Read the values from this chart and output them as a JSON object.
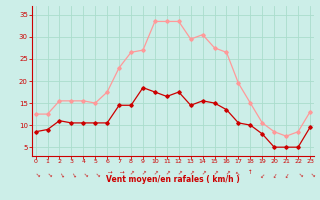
{
  "hours": [
    0,
    1,
    2,
    3,
    4,
    5,
    6,
    7,
    8,
    9,
    10,
    11,
    12,
    13,
    14,
    15,
    16,
    17,
    18,
    19,
    20,
    21,
    22,
    23
  ],
  "wind_avg": [
    8.5,
    9.0,
    11.0,
    10.5,
    10.5,
    10.5,
    10.5,
    14.5,
    14.5,
    18.5,
    17.5,
    16.5,
    17.5,
    14.5,
    15.5,
    15.0,
    13.5,
    10.5,
    10.0,
    8.0,
    5.0,
    5.0,
    5.0,
    9.5
  ],
  "wind_gust": [
    12.5,
    12.5,
    15.5,
    15.5,
    15.5,
    15.0,
    17.5,
    23.0,
    26.5,
    27.0,
    33.5,
    33.5,
    33.5,
    29.5,
    30.5,
    27.5,
    26.5,
    19.5,
    15.0,
    10.5,
    8.5,
    7.5,
    8.5,
    13.0
  ],
  "avg_color": "#cc0000",
  "gust_color": "#ff9999",
  "bg_color": "#cceee8",
  "grid_color": "#aaddcc",
  "xlabel": "Vent moyen/en rafales ( km/h )",
  "ylim": [
    3,
    37
  ],
  "yticks": [
    5,
    10,
    15,
    20,
    25,
    30,
    35
  ],
  "xlim": [
    -0.3,
    23.3
  ],
  "tick_color": "#cc0000",
  "spine_color": "#cc0000",
  "figsize": [
    3.2,
    2.0
  ],
  "dpi": 100
}
